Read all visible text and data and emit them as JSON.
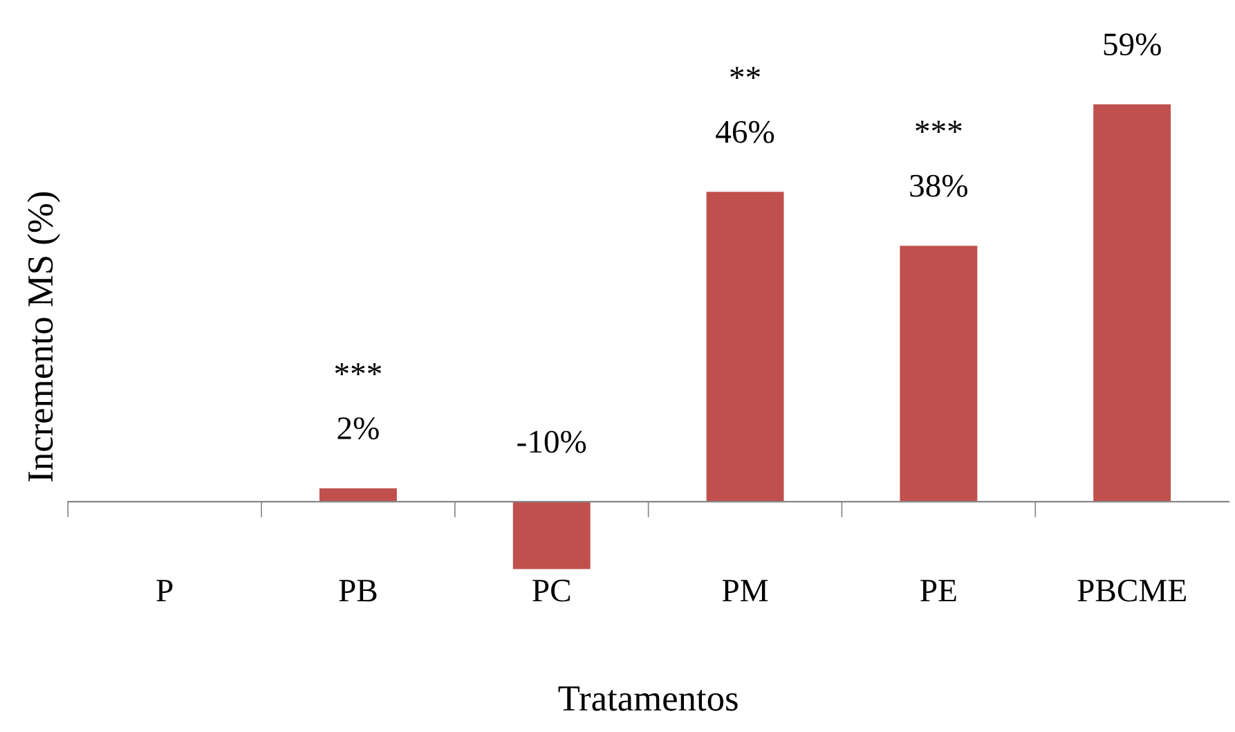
{
  "chart_data": {
    "type": "bar",
    "xlabel": "Tratamentos",
    "ylabel": "Incremento MS (%)",
    "categories": [
      "P",
      "PB",
      "PC",
      "PM",
      "PE",
      "PBCME"
    ],
    "values": [
      0,
      2,
      -10,
      46,
      38,
      59
    ],
    "value_labels": [
      null,
      "2%",
      "-10%",
      "46%",
      "38%",
      "59%"
    ],
    "color": "#c0504d",
    "tick_labels": "x",
    "grid": false,
    "annotations": [
      "***",
      "**",
      "***"
    ]
  }
}
